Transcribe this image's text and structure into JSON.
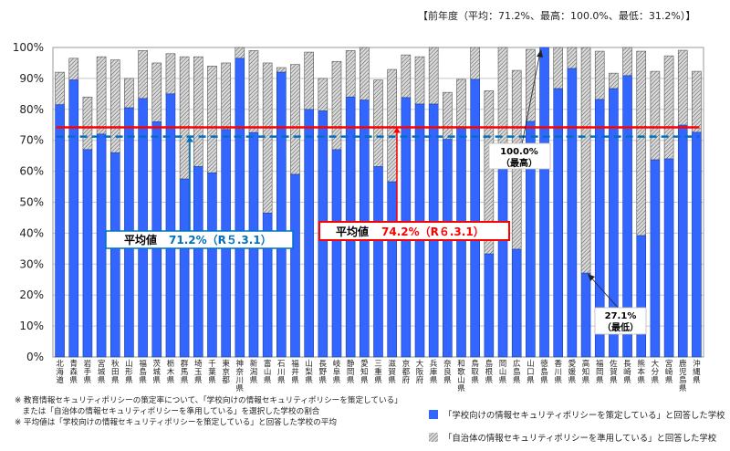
{
  "previous_year_note": "【前年度（平均：71.2%、最高：100.0%、最低：31.2%）】",
  "chart_data": {
    "type": "bar",
    "stacked": true,
    "categories": [
      "北海道",
      "青森県",
      "岩手県",
      "宮城県",
      "秋田県",
      "山形県",
      "福島県",
      "茨城県",
      "栃木県",
      "群馬県",
      "埼玉県",
      "千葉県",
      "東京都",
      "神奈川県",
      "新潟県",
      "富山県",
      "石川県",
      "福井県",
      "山梨県",
      "長野県",
      "岐阜県",
      "静岡県",
      "愛知県",
      "三重県",
      "滋賀県",
      "京都府",
      "大阪府",
      "兵庫県",
      "奈良県",
      "和歌山県",
      "鳥取県",
      "島根県",
      "岡山県",
      "広島県",
      "山口県",
      "徳島県",
      "香川県",
      "愛媛県",
      "高知県",
      "福岡県",
      "佐賀県",
      "長崎県",
      "熊本県",
      "大分県",
      "宮崎県",
      "鹿児島県",
      "沖縄県"
    ],
    "series": [
      {
        "name": "「学校向けの情報セキュリティポリシーを策定している」と回答した学校",
        "color": "#3366ff",
        "values": [
          81.5,
          89.5,
          67,
          72,
          66,
          80.5,
          83.5,
          76,
          85,
          57.5,
          61.5,
          59.5,
          73.5,
          96.5,
          72.5,
          46.5,
          92,
          59,
          80,
          79.5,
          67,
          84,
          83,
          61.5,
          56.6,
          83.8,
          81.7,
          81.7,
          70.3,
          74.3,
          89.7,
          33.3,
          69,
          34.8,
          76.1,
          100,
          86.7,
          93.2,
          27.1,
          83.2,
          86.7,
          90.9,
          39.2,
          63.7,
          64,
          74.9,
          72.6
        ]
      },
      {
        "name": "「自治体の情報セキュリティポリシーを準用している」と回答した学校",
        "color": "hatched-gray",
        "values": [
          10.5,
          7,
          17,
          25,
          30,
          9.5,
          15.5,
          19,
          13,
          39.5,
          35.5,
          34.5,
          21.5,
          3.5,
          26.5,
          48.5,
          1.5,
          35.5,
          18.5,
          10.5,
          28.5,
          15,
          17,
          28,
          36.3,
          13.8,
          15.3,
          18.3,
          15.2,
          15.4,
          10.3,
          52.7,
          31,
          57.8,
          23.3,
          0,
          13.3,
          6.8,
          72.9,
          15.6,
          5,
          9.1,
          59.6,
          28.6,
          33.3,
          24.2,
          19.7
        ]
      }
    ],
    "ylim": [
      0,
      100
    ],
    "yticks": [
      "0%",
      "10%",
      "20%",
      "30%",
      "40%",
      "50%",
      "60%",
      "70%",
      "80%",
      "90%",
      "100%"
    ],
    "grid": true,
    "reference_lines": [
      {
        "value": 74.2,
        "label_prefix": "平均値",
        "label_value": "74.2%（R６.3.1）",
        "color": "#ff0000",
        "style": "solid"
      },
      {
        "value": 71.2,
        "label_prefix": "平均値",
        "label_value": "71.2%（R５.3.1）",
        "color": "#0070c0",
        "style": "dashed"
      }
    ],
    "annotations": [
      {
        "line1": "100.0%",
        "line2": "（最高）"
      },
      {
        "line1": "27.1%",
        "line2": "（最低）"
      }
    ],
    "legend_placement": "bottom-right"
  },
  "notes": [
    "※ 教育情報セキュリティポリシーの策定率について、「学校向けの情報セキュリティポリシーを策定している」",
    "　または「自治体の情報セキュリティポリシーを準用している」を選択した学校の割合",
    "※ 平均値は「学校向けの情報セキュリティポリシーを策定している」と回答した学校の平均"
  ]
}
